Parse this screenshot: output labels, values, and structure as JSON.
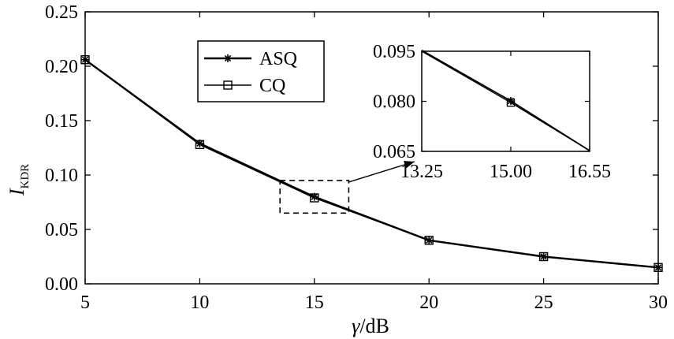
{
  "chart_data": {
    "type": "line",
    "xlabel": "γ/dB",
    "ylabel": "I",
    "ylabel_sub": "KDR",
    "xlim": [
      5,
      30
    ],
    "ylim": [
      0,
      0.25
    ],
    "x_ticks": [
      5,
      10,
      15,
      20,
      25,
      30
    ],
    "x_tick_labels": [
      "5",
      "10",
      "15",
      "20",
      "25",
      "30"
    ],
    "y_ticks": [
      0,
      0.05,
      0.1,
      0.15,
      0.2,
      0.25
    ],
    "y_tick_labels": [
      "0.00",
      "0.05",
      "0.10",
      "0.15",
      "0.20",
      "0.25"
    ],
    "legend_position": "top-center",
    "series": [
      {
        "name": "ASQ",
        "marker": "asterisk",
        "color": "#000000",
        "x": [
          5,
          10,
          15,
          20,
          25,
          30
        ],
        "y": [
          0.206,
          0.129,
          0.08,
          0.04,
          0.025,
          0.015
        ]
      },
      {
        "name": "CQ",
        "marker": "square",
        "color": "#000000",
        "x": [
          5,
          10,
          15,
          20,
          25,
          30
        ],
        "y": [
          0.206,
          0.128,
          0.079,
          0.04,
          0.025,
          0.015
        ]
      }
    ],
    "zoom_box": {
      "x": [
        13.5,
        16.5
      ],
      "y": [
        0.065,
        0.095
      ]
    },
    "inset": {
      "xlim": [
        13.25,
        16.55
      ],
      "ylim": [
        0.065,
        0.095
      ],
      "x_ticks": [
        13.25,
        15.0,
        16.55
      ],
      "x_tick_labels": [
        "13.25",
        "15.00",
        "16.55"
      ],
      "y_ticks": [
        0.065,
        0.08,
        0.095
      ],
      "y_tick_labels": [
        "0.065",
        "0.080",
        "0.095"
      ],
      "series": [
        {
          "name": "ASQ",
          "x": [
            13.25,
            15.0,
            16.55
          ],
          "y": [
            0.0953,
            0.0801,
            0.0652
          ]
        },
        {
          "name": "CQ",
          "x": [
            13.25,
            15.0,
            16.55
          ],
          "y": [
            0.095,
            0.0796,
            0.0652
          ]
        }
      ]
    }
  }
}
